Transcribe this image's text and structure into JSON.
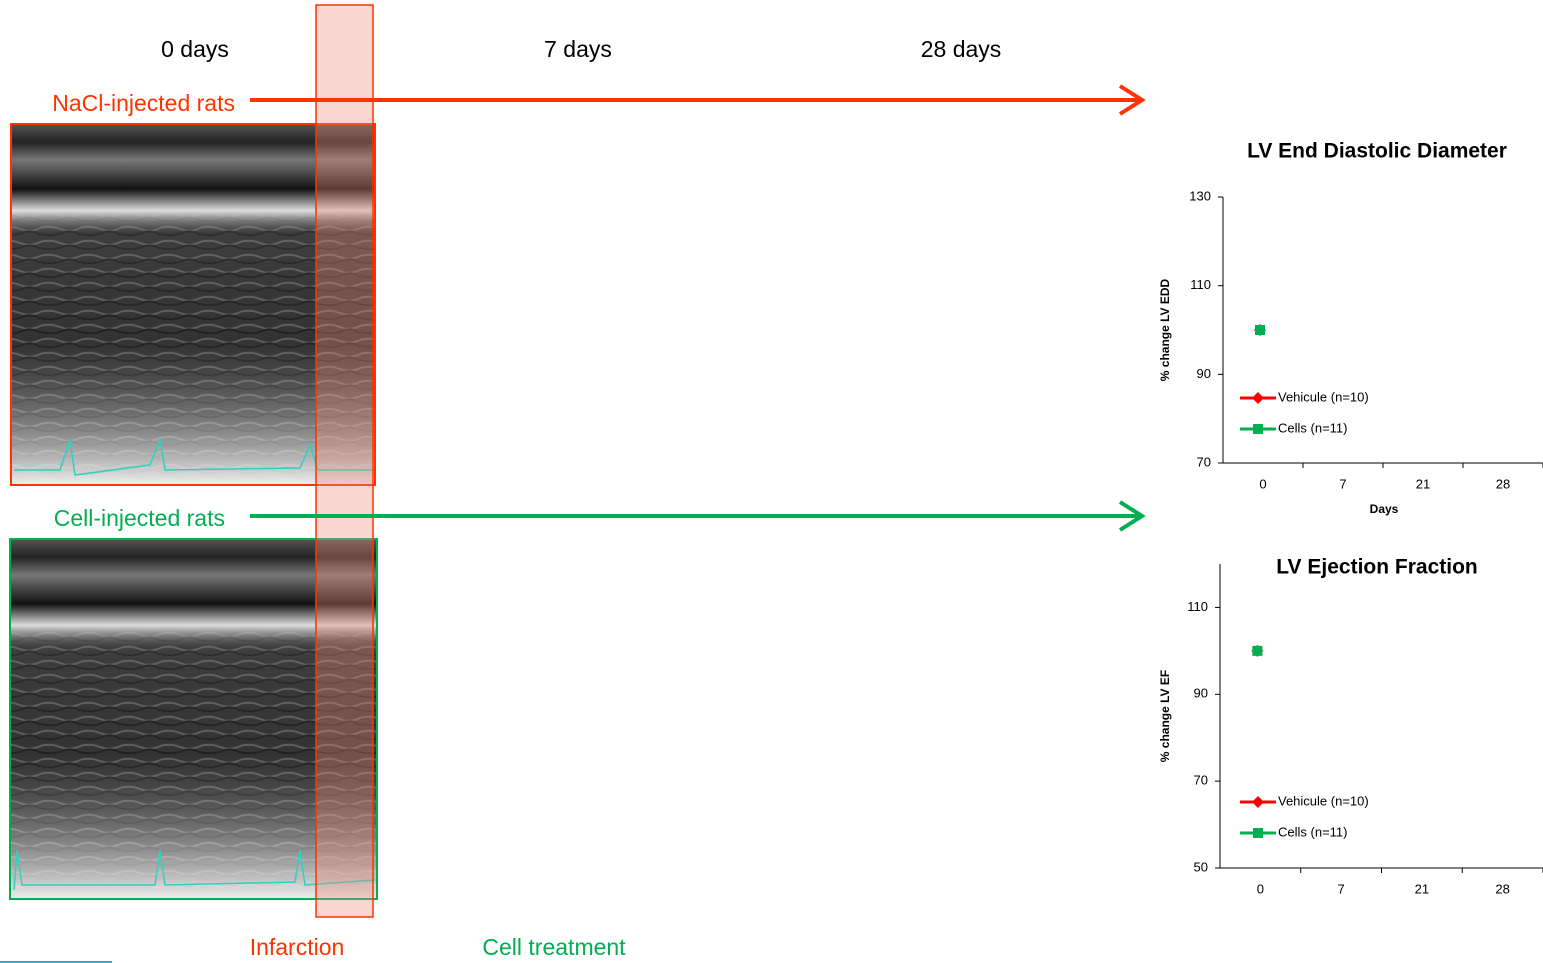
{
  "timeline": {
    "times": [
      "0 days",
      "7 days",
      "28 days"
    ],
    "groups": [
      "NaCl-injected rats",
      "Cell-injected rats"
    ],
    "events": [
      "Infarction",
      "Cell treatment"
    ]
  },
  "chart_data": [
    {
      "type": "line",
      "title": "LV End Diastolic Diameter",
      "y_label": "% change LV EDD",
      "x_label": "Days",
      "categories": [
        "0",
        "7",
        "21",
        "28"
      ],
      "series": [
        {
          "name": "Vehicule (n=10)",
          "color": "#ff0000",
          "values": [
            100,
            null,
            null,
            null
          ]
        },
        {
          "name": "Cells (n=11)",
          "color": "#00b050",
          "values": [
            100,
            null,
            null,
            null
          ]
        }
      ],
      "ylim": [
        70,
        130
      ],
      "yticks": [
        70,
        90,
        110,
        130
      ]
    },
    {
      "type": "line",
      "title": "LV Ejection Fraction",
      "y_label": "% change LV EF",
      "categories": [
        "0",
        "7",
        "21",
        "28"
      ],
      "series": [
        {
          "name": "Vehicule (n=10)",
          "color": "#ff0000",
          "values": [
            100,
            null,
            null,
            null
          ]
        },
        {
          "name": "Cells (n=11)",
          "color": "#00b050",
          "values": [
            100,
            null,
            null,
            null
          ]
        }
      ],
      "ylim": [
        50,
        120
      ],
      "yticks": [
        50,
        70,
        90,
        110
      ]
    }
  ]
}
